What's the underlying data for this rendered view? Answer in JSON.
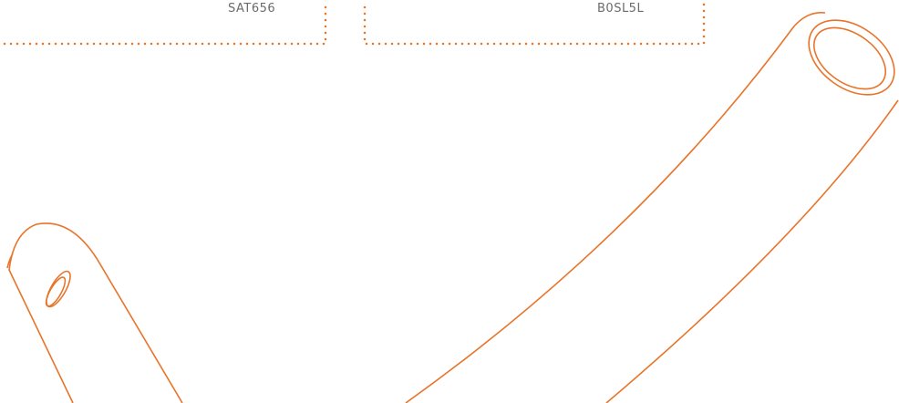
{
  "cards": [
    {
      "code": "SAT656"
    },
    {
      "code": "B0SL5L"
    }
  ]
}
